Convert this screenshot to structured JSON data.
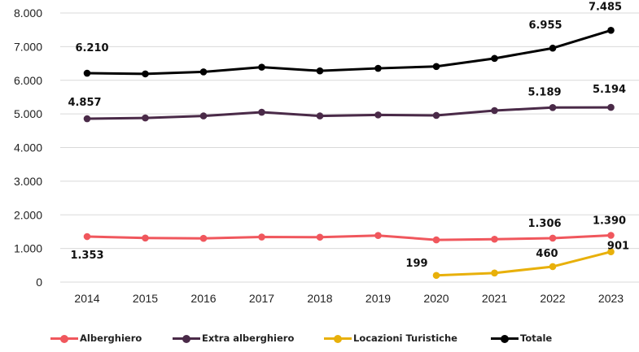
{
  "chart_data": {
    "type": "line",
    "title": "",
    "xlabel": "",
    "ylabel": "",
    "categories": [
      "2014",
      "2015",
      "2016",
      "2017",
      "2018",
      "2019",
      "2020",
      "2021",
      "2022",
      "2023"
    ],
    "ylim": [
      0,
      8000
    ],
    "yticks": [
      0,
      1000,
      2000,
      3000,
      4000,
      5000,
      6000,
      7000,
      8000
    ],
    "ytick_labels": [
      "0",
      "1.000",
      "2.000",
      "3.000",
      "4.000",
      "5.000",
      "6.000",
      "7.000",
      "8.000"
    ],
    "grid": "horizontal",
    "legend_position": "bottom",
    "series": [
      {
        "name": "Alberghiero",
        "color": "#f0575d",
        "values": [
          1353,
          1310,
          1300,
          1340,
          1335,
          1385,
          1255,
          1275,
          1306,
          1390
        ],
        "labels": [
          {
            "index": 0,
            "text": "1.353"
          },
          {
            "index": 8,
            "text": "1.306"
          },
          {
            "index": 9,
            "text": "1.390"
          }
        ]
      },
      {
        "name": "Extra alberghiero",
        "color": "#4a2a48",
        "values": [
          4857,
          4880,
          4940,
          5050,
          4940,
          4970,
          4955,
          5100,
          5189,
          5194
        ],
        "labels": [
          {
            "index": 0,
            "text": "4.857"
          },
          {
            "index": 8,
            "text": "5.189"
          },
          {
            "index": 9,
            "text": "5.194"
          }
        ]
      },
      {
        "name": "Locazioni Turistiche",
        "color": "#e8b00a",
        "values": [
          null,
          null,
          null,
          null,
          null,
          null,
          199,
          270,
          460,
          901
        ],
        "labels": [
          {
            "index": 6,
            "text": "199"
          },
          {
            "index": 8,
            "text": "460"
          },
          {
            "index": 9,
            "text": "901"
          }
        ]
      },
      {
        "name": "Totale",
        "color": "#000000",
        "values": [
          6210,
          6190,
          6250,
          6390,
          6280,
          6355,
          6410,
          6650,
          6955,
          7485
        ],
        "labels": [
          {
            "index": 0,
            "text": "6.210"
          },
          {
            "index": 8,
            "text": "6.955"
          },
          {
            "index": 9,
            "text": "7.485"
          }
        ]
      }
    ]
  }
}
